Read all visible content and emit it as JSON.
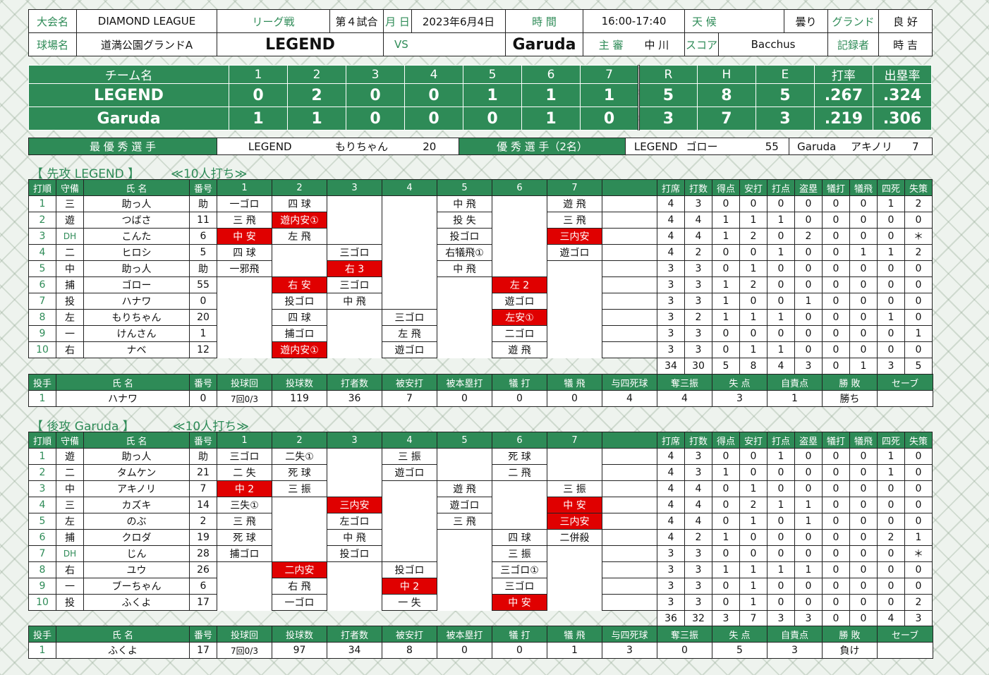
{
  "header": {
    "taikai_label": "大会名",
    "taikai": "DIAMOND LEAGUE",
    "league_label": "リーグ戦",
    "game": "第４試合",
    "date_label": "月 日",
    "date": "2023年6月4日",
    "time_label": "時 間",
    "time": "16:00-17:40",
    "weather_label": "天 候",
    "weather": "曇り",
    "ground_label": "グランド",
    "ground": "良 好",
    "venue_label": "球場名",
    "venue": "道満公園グランドA",
    "home": "LEGEND",
    "vs": "VS",
    "away": "Garuda",
    "umpire_label": "主 審",
    "umpire": "中 川",
    "scorer_label": "スコア",
    "scorer": "Bacchus",
    "recorder_label": "記録者",
    "recorder": "時 吉"
  },
  "scoreboard": {
    "headers": [
      "チーム名",
      "1",
      "2",
      "3",
      "4",
      "5",
      "6",
      "7",
      "R",
      "H",
      "E",
      "打率",
      "出塁率"
    ],
    "rows": [
      [
        "LEGEND",
        "0",
        "2",
        "0",
        "0",
        "1",
        "1",
        "1",
        "5",
        "8",
        "5",
        ".267",
        ".324"
      ],
      [
        "Garuda",
        "1",
        "1",
        "0",
        "0",
        "0",
        "1",
        "0",
        "3",
        "7",
        "3",
        ".219",
        ".306"
      ]
    ]
  },
  "mvp": {
    "best_label": "最 優 秀 選 手",
    "best_team": "LEGEND",
    "best_name": "もりちゃん",
    "best_no": "20",
    "good_label": "優 秀 選 手（2名）",
    "good1_team": "LEGEND",
    "good1_name": "ゴロー",
    "good1_no": "55",
    "good2_team": "Garuda",
    "good2_name": "アキノリ",
    "good2_no": "7"
  },
  "colors": {
    "green": "#2e8b57",
    "hit": "#e00000"
  },
  "batting_headers": [
    "打順",
    "守備",
    "氏 名",
    "番号",
    "1",
    "2",
    "3",
    "4",
    "5",
    "6",
    "7",
    "",
    "打席",
    "打数",
    "得点",
    "安打",
    "打点",
    "盗塁",
    "犠打",
    "犠飛",
    "四死",
    "失策"
  ],
  "pitching_headers": [
    "投手",
    "氏 名",
    "番号",
    "投球回",
    "投球数",
    "打者数",
    "被安打",
    "被本塁打",
    "犠 打",
    "犠 飛",
    "与四死球",
    "奪三振",
    "失 点",
    "自責点",
    "勝 敗",
    "セーブ"
  ],
  "team1": {
    "title": "【 先攻 LEGEND 】",
    "note": "≪10人打ち≫",
    "batters": [
      {
        "c": [
          "1",
          "三",
          "助っ人",
          "助"
        ],
        "ab": [
          [
            "一ゴロ",
            0
          ],
          [
            "四 球",
            0
          ],
          [
            "",
            0
          ],
          [
            "",
            0
          ],
          [
            "中 飛",
            0
          ],
          [
            "",
            0
          ],
          [
            "遊 飛",
            0
          ],
          [
            "",
            0
          ]
        ],
        "s": [
          "4",
          "3",
          "0",
          "0",
          "0",
          "0",
          "0",
          "0",
          "1",
          "2"
        ]
      },
      {
        "c": [
          "2",
          "遊",
          "つばさ",
          "11"
        ],
        "ab": [
          [
            "三 飛",
            0
          ],
          [
            "遊内安①",
            1
          ],
          [
            "",
            0
          ],
          [
            "",
            0
          ],
          [
            "投 失",
            0
          ],
          [
            "",
            0
          ],
          [
            "三 飛",
            0
          ],
          [
            "",
            0
          ]
        ],
        "s": [
          "4",
          "4",
          "1",
          "1",
          "1",
          "0",
          "0",
          "0",
          "0",
          "0"
        ]
      },
      {
        "c": [
          "3",
          "DH",
          "こんた",
          "6"
        ],
        "ab": [
          [
            "中 安",
            1
          ],
          [
            "左 飛",
            0
          ],
          [
            "",
            0
          ],
          [
            "",
            0
          ],
          [
            "投ゴロ",
            0
          ],
          [
            "",
            0
          ],
          [
            "三内安",
            1
          ],
          [
            "",
            0
          ]
        ],
        "s": [
          "4",
          "4",
          "1",
          "2",
          "0",
          "2",
          "0",
          "0",
          "0",
          "＊"
        ]
      },
      {
        "c": [
          "4",
          "二",
          "ヒロシ",
          "5"
        ],
        "ab": [
          [
            "四 球",
            0
          ],
          [
            "",
            0
          ],
          [
            "三ゴロ",
            0
          ],
          [
            "",
            0
          ],
          [
            "右犠飛①",
            0
          ],
          [
            "",
            0
          ],
          [
            "遊ゴロ",
            0
          ],
          [
            "",
            0
          ]
        ],
        "s": [
          "4",
          "2",
          "0",
          "0",
          "1",
          "0",
          "0",
          "1",
          "1",
          "2"
        ]
      },
      {
        "c": [
          "5",
          "中",
          "助っ人",
          "助"
        ],
        "ab": [
          [
            "一邪飛",
            0
          ],
          [
            "",
            0
          ],
          [
            "右 3",
            1
          ],
          [
            "",
            0
          ],
          [
            "中 飛",
            0
          ],
          [
            "",
            0
          ],
          [
            "",
            0
          ],
          [
            "",
            0
          ]
        ],
        "s": [
          "3",
          "3",
          "0",
          "1",
          "0",
          "0",
          "0",
          "0",
          "0",
          "0"
        ]
      },
      {
        "c": [
          "6",
          "捕",
          "ゴロー",
          "55"
        ],
        "ab": [
          [
            "",
            0
          ],
          [
            "右 安",
            1
          ],
          [
            "三ゴロ",
            0
          ],
          [
            "",
            0
          ],
          [
            "",
            0
          ],
          [
            "左 2",
            1
          ],
          [
            "",
            0
          ],
          [
            "",
            0
          ]
        ],
        "s": [
          "3",
          "3",
          "1",
          "2",
          "0",
          "0",
          "0",
          "0",
          "0",
          "0"
        ]
      },
      {
        "c": [
          "7",
          "投",
          "ハナワ",
          "0"
        ],
        "ab": [
          [
            "",
            0
          ],
          [
            "投ゴロ",
            0
          ],
          [
            "中 飛",
            0
          ],
          [
            "",
            0
          ],
          [
            "",
            0
          ],
          [
            "遊ゴロ",
            0
          ],
          [
            "",
            0
          ],
          [
            "",
            0
          ]
        ],
        "s": [
          "3",
          "3",
          "1",
          "0",
          "0",
          "1",
          "0",
          "0",
          "0",
          "0"
        ]
      },
      {
        "c": [
          "8",
          "左",
          "もりちゃん",
          "20"
        ],
        "ab": [
          [
            "",
            0
          ],
          [
            "四 球",
            0
          ],
          [
            "",
            0
          ],
          [
            "三ゴロ",
            0
          ],
          [
            "",
            0
          ],
          [
            "左安①",
            1
          ],
          [
            "",
            0
          ],
          [
            "",
            0
          ]
        ],
        "s": [
          "3",
          "2",
          "1",
          "1",
          "1",
          "0",
          "0",
          "0",
          "1",
          "0"
        ]
      },
      {
        "c": [
          "9",
          "一",
          "けんさん",
          "1"
        ],
        "ab": [
          [
            "",
            0
          ],
          [
            "捕ゴロ",
            0
          ],
          [
            "",
            0
          ],
          [
            "左 飛",
            0
          ],
          [
            "",
            0
          ],
          [
            "二ゴロ",
            0
          ],
          [
            "",
            0
          ],
          [
            "",
            0
          ]
        ],
        "s": [
          "3",
          "3",
          "0",
          "0",
          "0",
          "0",
          "0",
          "0",
          "0",
          "1"
        ]
      },
      {
        "c": [
          "10",
          "右",
          "ナベ",
          "12"
        ],
        "ab": [
          [
            "",
            0
          ],
          [
            "遊内安①",
            1
          ],
          [
            "",
            0
          ],
          [
            "遊ゴロ",
            0
          ],
          [
            "",
            0
          ],
          [
            "遊 飛",
            0
          ],
          [
            "",
            0
          ],
          [
            "",
            0
          ]
        ],
        "s": [
          "3",
          "3",
          "0",
          "1",
          "1",
          "0",
          "0",
          "0",
          "0",
          "0"
        ]
      }
    ],
    "totals": [
      "34",
      "30",
      "5",
      "8",
      "4",
      "3",
      "0",
      "1",
      "3",
      "5"
    ],
    "pitcher": [
      "1",
      "ハナワ",
      "0",
      "7回0/3",
      "119",
      "36",
      "7",
      "0",
      "0",
      "0",
      "4",
      "4",
      "3",
      "1",
      "勝ち",
      ""
    ]
  },
  "team2": {
    "title": "【 後攻 Garuda 】",
    "note": "≪10人打ち≫",
    "batters": [
      {
        "c": [
          "1",
          "遊",
          "助っ人",
          "助"
        ],
        "ab": [
          [
            "三ゴロ",
            0
          ],
          [
            "二失①",
            0
          ],
          [
            "",
            0
          ],
          [
            "三 振",
            0
          ],
          [
            "",
            0
          ],
          [
            "死 球",
            0
          ],
          [
            "",
            0
          ],
          [
            "",
            0
          ]
        ],
        "s": [
          "4",
          "3",
          "0",
          "0",
          "1",
          "0",
          "0",
          "0",
          "1",
          "0"
        ]
      },
      {
        "c": [
          "2",
          "二",
          "タムケン",
          "21"
        ],
        "ab": [
          [
            "二 失",
            0
          ],
          [
            "死 球",
            0
          ],
          [
            "",
            0
          ],
          [
            "遊ゴロ",
            0
          ],
          [
            "",
            0
          ],
          [
            "二 飛",
            0
          ],
          [
            "",
            0
          ],
          [
            "",
            0
          ]
        ],
        "s": [
          "4",
          "3",
          "1",
          "0",
          "0",
          "0",
          "0",
          "0",
          "1",
          "0"
        ]
      },
      {
        "c": [
          "3",
          "中",
          "アキノリ",
          "7"
        ],
        "ab": [
          [
            "中 2",
            1
          ],
          [
            "三 振",
            0
          ],
          [
            "",
            0
          ],
          [
            "",
            0
          ],
          [
            "遊 飛",
            0
          ],
          [
            "",
            0
          ],
          [
            "三 振",
            0
          ],
          [
            "",
            0
          ]
        ],
        "s": [
          "4",
          "4",
          "0",
          "1",
          "0",
          "0",
          "0",
          "0",
          "0",
          "0"
        ]
      },
      {
        "c": [
          "4",
          "三",
          "カズキ",
          "14"
        ],
        "ab": [
          [
            "三失①",
            0
          ],
          [
            "",
            0
          ],
          [
            "三内安",
            1
          ],
          [
            "",
            0
          ],
          [
            "遊ゴロ",
            0
          ],
          [
            "",
            0
          ],
          [
            "中 安",
            1
          ],
          [
            "",
            0
          ]
        ],
        "s": [
          "4",
          "4",
          "0",
          "2",
          "1",
          "1",
          "0",
          "0",
          "0",
          "0"
        ]
      },
      {
        "c": [
          "5",
          "左",
          "のぶ",
          "2"
        ],
        "ab": [
          [
            "三 飛",
            0
          ],
          [
            "",
            0
          ],
          [
            "左ゴロ",
            0
          ],
          [
            "",
            0
          ],
          [
            "三 飛",
            0
          ],
          [
            "",
            0
          ],
          [
            "三内安",
            1
          ],
          [
            "",
            0
          ]
        ],
        "s": [
          "4",
          "4",
          "0",
          "1",
          "0",
          "1",
          "0",
          "0",
          "0",
          "0"
        ]
      },
      {
        "c": [
          "6",
          "捕",
          "クロダ",
          "19"
        ],
        "ab": [
          [
            "死 球",
            0
          ],
          [
            "",
            0
          ],
          [
            "中 飛",
            0
          ],
          [
            "",
            0
          ],
          [
            "",
            0
          ],
          [
            "四 球",
            0
          ],
          [
            "二併殺",
            0
          ],
          [
            "",
            0
          ]
        ],
        "s": [
          "4",
          "2",
          "1",
          "0",
          "0",
          "0",
          "0",
          "0",
          "2",
          "1"
        ]
      },
      {
        "c": [
          "7",
          "DH",
          "じん",
          "28"
        ],
        "ab": [
          [
            "捕ゴロ",
            0
          ],
          [
            "",
            0
          ],
          [
            "投ゴロ",
            0
          ],
          [
            "",
            0
          ],
          [
            "",
            0
          ],
          [
            "三 振",
            0
          ],
          [
            "",
            0
          ],
          [
            "",
            0
          ]
        ],
        "s": [
          "3",
          "3",
          "0",
          "0",
          "0",
          "0",
          "0",
          "0",
          "0",
          "＊"
        ]
      },
      {
        "c": [
          "8",
          "右",
          "ユウ",
          "26"
        ],
        "ab": [
          [
            "",
            0
          ],
          [
            "二内安",
            1
          ],
          [
            "",
            0
          ],
          [
            "投ゴロ",
            0
          ],
          [
            "",
            0
          ],
          [
            "三ゴロ①",
            0
          ],
          [
            "",
            0
          ],
          [
            "",
            0
          ]
        ],
        "s": [
          "3",
          "3",
          "1",
          "1",
          "1",
          "1",
          "0",
          "0",
          "0",
          "0"
        ]
      },
      {
        "c": [
          "9",
          "一",
          "ブーちゃん",
          "6"
        ],
        "ab": [
          [
            "",
            0
          ],
          [
            "右 飛",
            0
          ],
          [
            "",
            0
          ],
          [
            "中 2",
            1
          ],
          [
            "",
            0
          ],
          [
            "三ゴロ",
            0
          ],
          [
            "",
            0
          ],
          [
            "",
            0
          ]
        ],
        "s": [
          "3",
          "3",
          "0",
          "1",
          "0",
          "0",
          "0",
          "0",
          "0",
          "0"
        ]
      },
      {
        "c": [
          "10",
          "投",
          "ふくよ",
          "17"
        ],
        "ab": [
          [
            "",
            0
          ],
          [
            "一ゴロ",
            0
          ],
          [
            "",
            0
          ],
          [
            "一 失",
            0
          ],
          [
            "",
            0
          ],
          [
            "中 安",
            1
          ],
          [
            "",
            0
          ],
          [
            "",
            0
          ]
        ],
        "s": [
          "3",
          "3",
          "0",
          "1",
          "0",
          "0",
          "0",
          "0",
          "0",
          "2"
        ]
      }
    ],
    "totals": [
      "36",
      "32",
      "3",
      "7",
      "3",
      "3",
      "0",
      "0",
      "4",
      "3"
    ],
    "pitcher": [
      "1",
      "ふくよ",
      "17",
      "7回0/3",
      "97",
      "34",
      "8",
      "0",
      "0",
      "1",
      "3",
      "0",
      "5",
      "3",
      "負け",
      ""
    ]
  }
}
